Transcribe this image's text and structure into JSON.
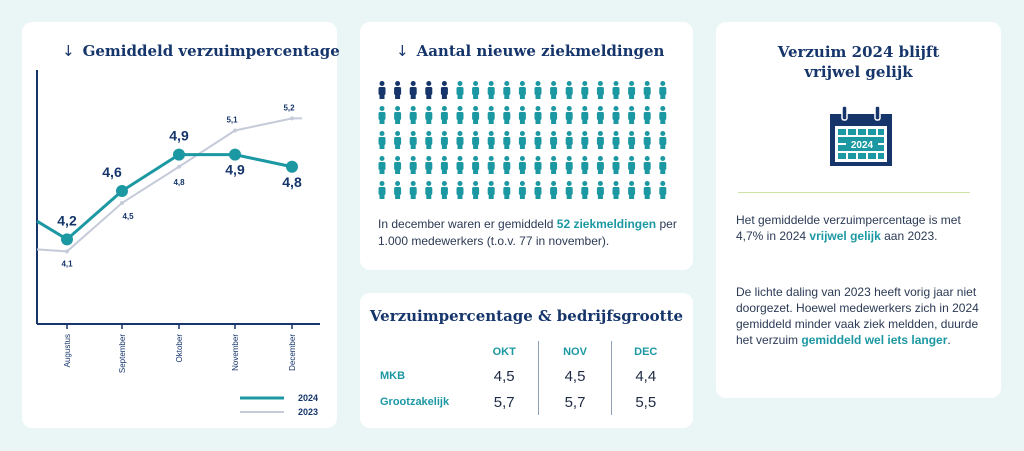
{
  "chart_card": {
    "title": "Gemiddeld verzuimpercentage",
    "arrow": "↓",
    "colors": {
      "s2024": "#1c98a3",
      "s2023": "#c5cbd8"
    }
  },
  "chart_data": {
    "type": "line",
    "categories": [
      "Augustus",
      "September",
      "Oktober",
      "November",
      "December"
    ],
    "series": [
      {
        "name": "2024",
        "values": [
          4.2,
          4.6,
          4.9,
          4.9,
          4.8
        ],
        "labels": [
          "4,2",
          "4,6",
          "4,9",
          "4,9",
          "4,8"
        ]
      },
      {
        "name": "2023",
        "values": [
          4.1,
          4.5,
          4.8,
          5.1,
          5.2
        ],
        "labels": [
          "4,1",
          "4,5",
          "4,8",
          "5,1",
          "5,2"
        ]
      }
    ],
    "title": "Gemiddeld verzuimpercentage",
    "xlabel": "",
    "ylabel": "",
    "ylim": [
      3.5,
      5.6
    ],
    "legend": "bottom-right"
  },
  "people_card": {
    "title": "Aantal nieuwe ziekmeldingen",
    "arrow": "↓",
    "grid_rows": 5,
    "grid_cols": 19,
    "highlighted": 5,
    "colors": {
      "highlight": "#15356b",
      "base": "#1c98a3"
    },
    "text_before": "In december waren er gemiddeld ",
    "text_bold": "52 ziekmeldingen",
    "text_after": " per 1.000 medewerkers (t.o.v. 77 in november)."
  },
  "size_card": {
    "title": "Verzuimpercentage & bedrijfsgrootte",
    "columns": [
      "OKT",
      "NOV",
      "DEC"
    ],
    "rows": [
      {
        "label": "MKB",
        "values": [
          "4,5",
          "4,5",
          "4,4"
        ]
      },
      {
        "label": "Grootzakelijk",
        "values": [
          "5,7",
          "5,7",
          "5,5"
        ]
      }
    ]
  },
  "side_card": {
    "title": "Verzuim 2024 blijft vrijwel gelijk",
    "calendar_year": "2024",
    "icon": "calendar-icon",
    "p1_before": "Het gemiddelde verzuimpercentage is met 4,7% in 2024 ",
    "p1_bold": "vrijwel gelijk",
    "p1_after": " aan 2023.",
    "p2_before": "De lichte daling van 2023 heeft vorig jaar niet doorgezet. Hoewel medewerkers zich in 2024 gemiddeld minder vaak ziek meldden, duurde het verzuim ",
    "p2_bold": "gemiddeld wel iets langer",
    "p2_after": "."
  }
}
